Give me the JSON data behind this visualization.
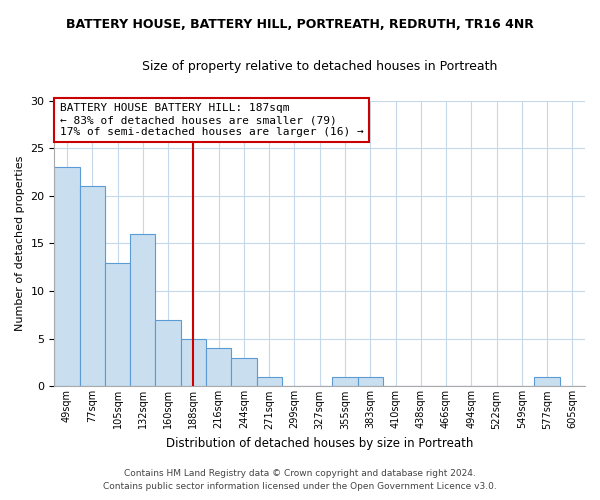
{
  "title": "BATTERY HOUSE, BATTERY HILL, PORTREATH, REDRUTH, TR16 4NR",
  "subtitle": "Size of property relative to detached houses in Portreath",
  "xlabel": "Distribution of detached houses by size in Portreath",
  "ylabel": "Number of detached properties",
  "bin_labels": [
    "49sqm",
    "77sqm",
    "105sqm",
    "132sqm",
    "160sqm",
    "188sqm",
    "216sqm",
    "244sqm",
    "271sqm",
    "299sqm",
    "327sqm",
    "355sqm",
    "383sqm",
    "410sqm",
    "438sqm",
    "466sqm",
    "494sqm",
    "522sqm",
    "549sqm",
    "577sqm",
    "605sqm"
  ],
  "counts": [
    23,
    21,
    13,
    16,
    7,
    5,
    4,
    3,
    1,
    0,
    0,
    1,
    1,
    0,
    0,
    0,
    0,
    0,
    0,
    1,
    0
  ],
  "bar_color": "#c9dff0",
  "bar_edge_color": "#5b9bd5",
  "marker_bin_index": 5,
  "marker_color": "#cc0000",
  "annotation_title": "BATTERY HOUSE BATTERY HILL: 187sqm",
  "annotation_line1": "← 83% of detached houses are smaller (79)",
  "annotation_line2": "17% of semi-detached houses are larger (16) →",
  "annotation_box_color": "#ffffff",
  "annotation_box_edge": "#cc0000",
  "ylim": [
    0,
    30
  ],
  "yticks": [
    0,
    5,
    10,
    15,
    20,
    25,
    30
  ],
  "footer_line1": "Contains HM Land Registry data © Crown copyright and database right 2024.",
  "footer_line2": "Contains public sector information licensed under the Open Government Licence v3.0.",
  "background_color": "#ffffff",
  "grid_color": "#c5d8ea"
}
